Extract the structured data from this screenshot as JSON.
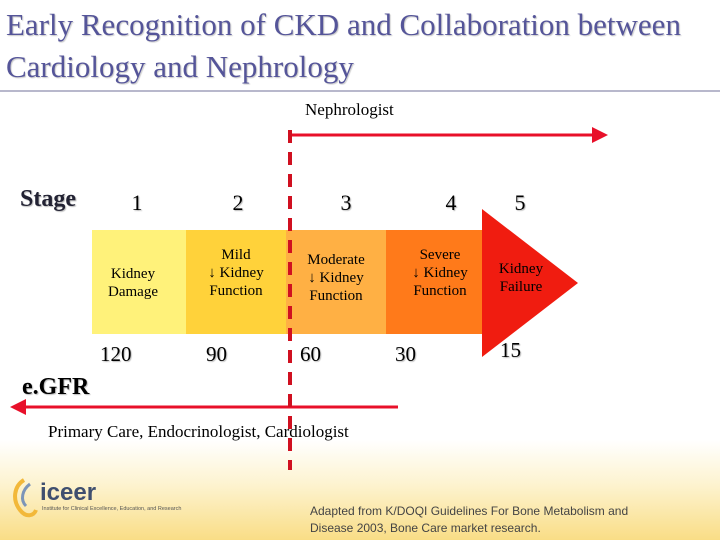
{
  "title": "Early Recognition of CKD and Collaboration between Cardiology and Nephrology",
  "nephrologist_label": "Nephrologist",
  "stage_label": "Stage",
  "stages": [
    "1",
    "2",
    "3",
    "4",
    "5"
  ],
  "segments": [
    {
      "text": "Kidney\nDamage",
      "color": "#fff27a"
    },
    {
      "text": "Mild\n↓ Kidney\nFunction",
      "color": "#ffd23a"
    },
    {
      "text": "Moderate\n↓ Kidney\nFunction",
      "color": "#ffb044"
    },
    {
      "text": "Severe\n↓ Kidney\nFunction",
      "color": "#ff7a1a"
    },
    {
      "text": "Kidney\nFailure",
      "color": "#f01c10"
    }
  ],
  "egfr_label": "e.GFR",
  "egfr_values": [
    "120",
    "90",
    "60",
    "30",
    "15"
  ],
  "primary_care_label": "Primary Care, Endocrinologist, Cardiologist",
  "logo": {
    "word": "iceer",
    "tagline": "Institute for Clinical Excellence, Education, and Research"
  },
  "credit": "Adapted from K/DOQI Guidelines For Bone Metabolism and\nDisease 2003, Bone Care market research.",
  "colors": {
    "arrow": "#e8102a",
    "title": "#555599"
  }
}
